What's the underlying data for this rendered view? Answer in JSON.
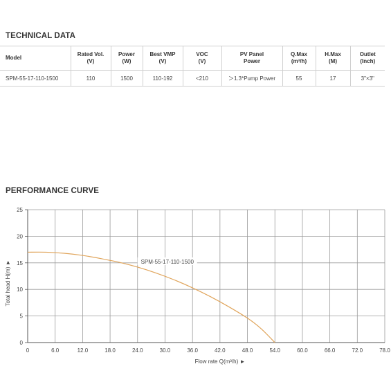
{
  "technical_data": {
    "title": "TECHNICAL DATA",
    "headers": [
      {
        "line1": "Model",
        "line2": ""
      },
      {
        "line1": "Rated Vol.",
        "line2": "(V)"
      },
      {
        "line1": "Power",
        "line2": "(W)"
      },
      {
        "line1": "Best VMP",
        "line2": "(V)"
      },
      {
        "line1": "VOC",
        "line2": "(V)"
      },
      {
        "line1": "PV Panel",
        "line2": "Power"
      },
      {
        "line1": "Q.Max",
        "line2": "(m³/h)"
      },
      {
        "line1": "H.Max",
        "line2": "(M)"
      },
      {
        "line1": "Outlet",
        "line2": "(Inch)"
      }
    ],
    "rows": [
      [
        "SPM-55-17-110-1500",
        "110",
        "1500",
        "110-192",
        "<210",
        "＞1.3*Pump Power",
        "55",
        "17",
        "3\"×3\""
      ]
    ]
  },
  "performance_curve": {
    "title": "PERFORMANCE CURVE"
  },
  "chart_data": {
    "type": "line",
    "xlabel": "Flow rate Q(m³/h) ►",
    "ylabel": "Total head H(m) ►",
    "xlim": [
      0,
      78
    ],
    "ylim": [
      0,
      25
    ],
    "x_ticks": [
      "0",
      "6.0",
      "12.0",
      "18.0",
      "24.0",
      "30.0",
      "36.0",
      "42.0",
      "48.0",
      "54.0",
      "60.0",
      "66.0",
      "72.0",
      "78.0"
    ],
    "y_ticks": [
      "0",
      "5",
      "10",
      "15",
      "20",
      "25"
    ],
    "grid": true,
    "colors": {
      "curve": "#e0a45a",
      "grid": "#9a9a9a",
      "axis": "#555555"
    },
    "series": [
      {
        "name": "SPM-55-17-110-1500",
        "x": [
          0,
          4,
          8,
          12,
          16,
          20,
          24,
          28,
          32,
          36,
          40,
          44,
          48,
          51,
          54
        ],
        "y": [
          17.0,
          17.0,
          16.8,
          16.4,
          15.8,
          15.1,
          14.2,
          13.1,
          11.8,
          10.3,
          8.6,
          6.7,
          4.6,
          2.6,
          0
        ]
      }
    ]
  }
}
